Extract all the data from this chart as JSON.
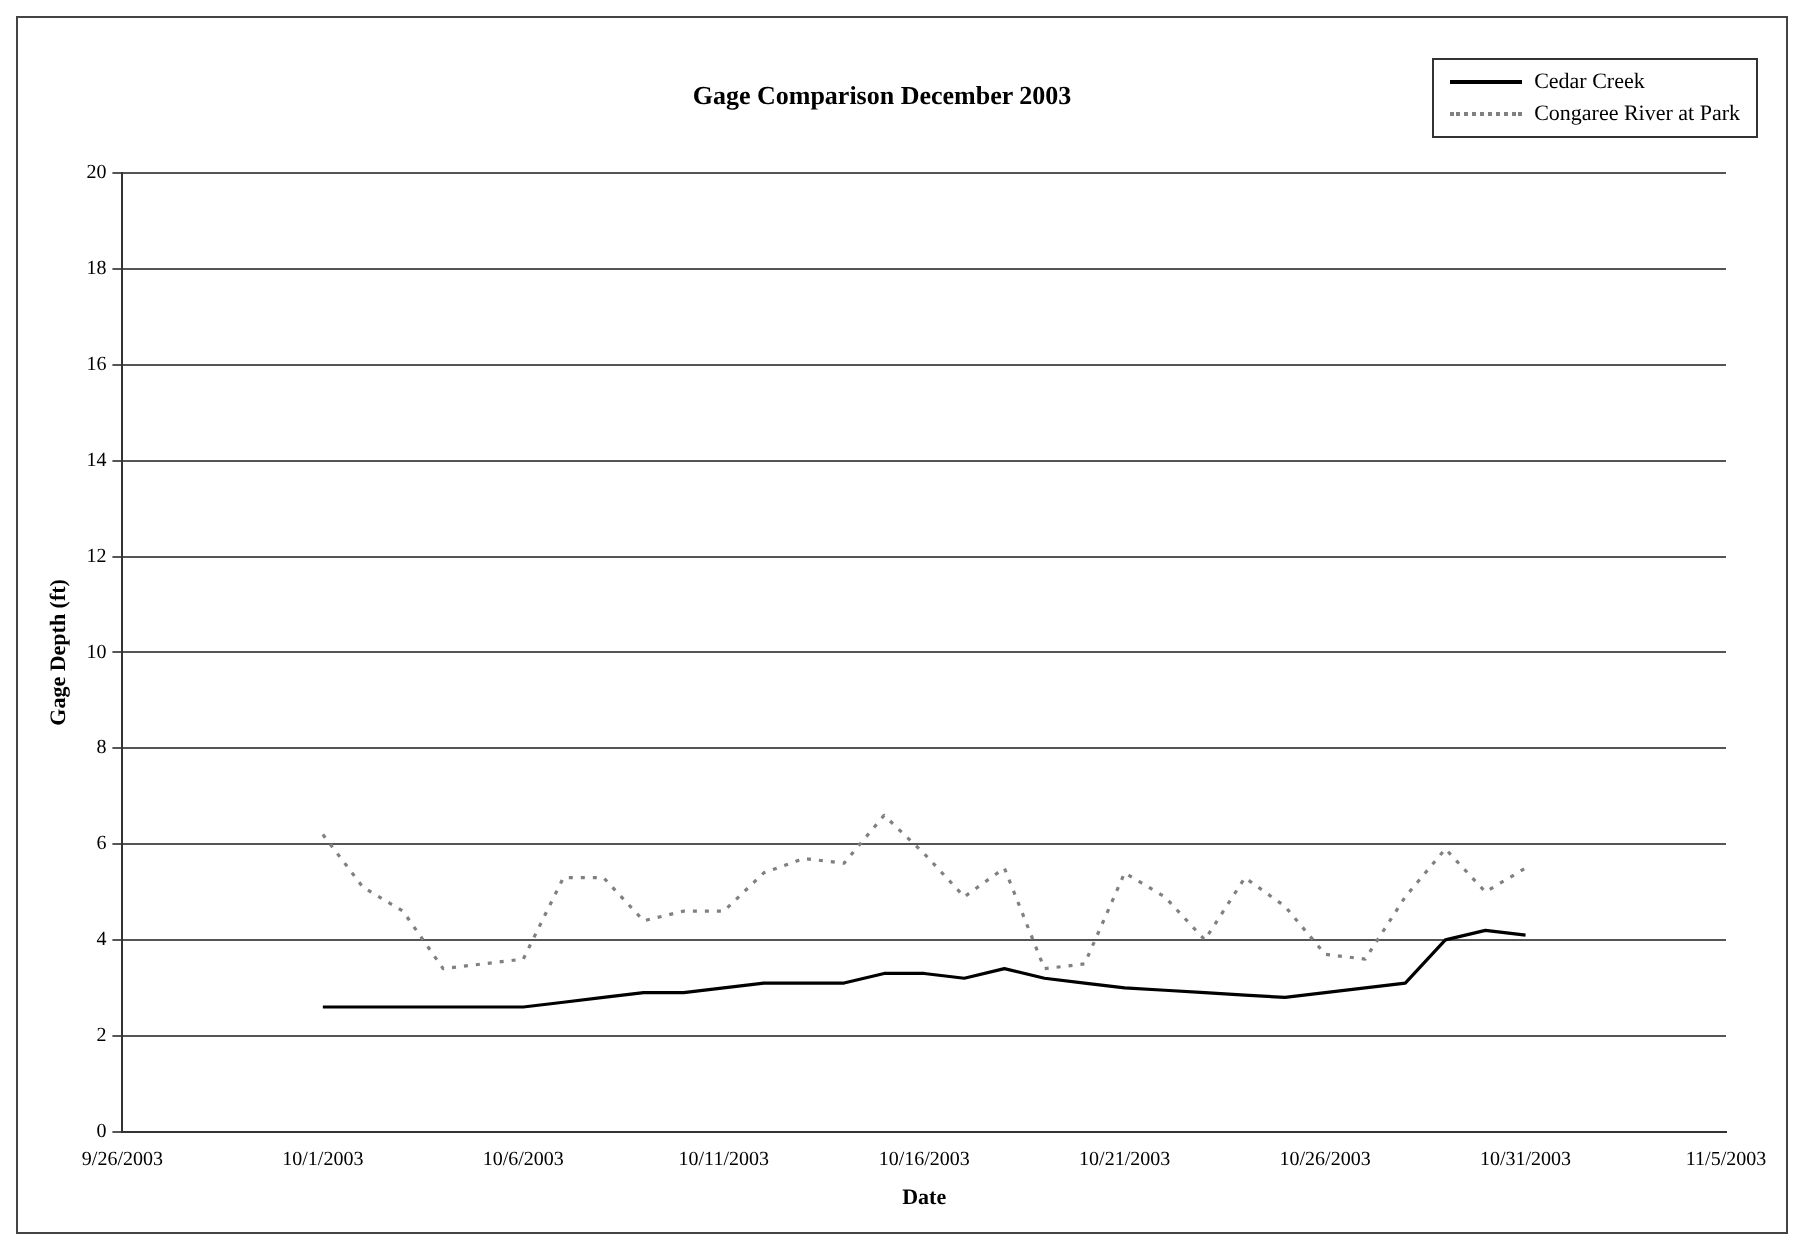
{
  "chart_data": {
    "type": "line",
    "title": "Gage Comparison December 2003",
    "xlabel": "Date",
    "ylabel": "Gage Depth (ft)",
    "x": [
      "2003-10-01",
      "2003-10-02",
      "2003-10-03",
      "2003-10-04",
      "2003-10-05",
      "2003-10-06",
      "2003-10-07",
      "2003-10-08",
      "2003-10-09",
      "2003-10-10",
      "2003-10-11",
      "2003-10-12",
      "2003-10-13",
      "2003-10-14",
      "2003-10-15",
      "2003-10-16",
      "2003-10-17",
      "2003-10-18",
      "2003-10-19",
      "2003-10-20",
      "2003-10-21",
      "2003-10-22",
      "2003-10-23",
      "2003-10-24",
      "2003-10-25",
      "2003-10-26",
      "2003-10-27",
      "2003-10-28",
      "2003-10-29",
      "2003-10-30",
      "2003-10-31"
    ],
    "series": [
      {
        "name": "Cedar Creek",
        "color": "#000000",
        "line_style": "solid",
        "values": [
          2.6,
          2.6,
          2.6,
          2.6,
          2.6,
          2.6,
          2.7,
          2.8,
          2.9,
          2.9,
          3.0,
          3.1,
          3.1,
          3.1,
          3.3,
          3.3,
          3.2,
          3.4,
          3.2,
          3.1,
          3.0,
          2.95,
          2.9,
          2.85,
          2.8,
          2.9,
          3.0,
          3.1,
          4.0,
          4.2,
          4.1
        ]
      },
      {
        "name": "Congaree River at Park",
        "color": "#808080",
        "line_style": "dotted",
        "values": [
          6.2,
          5.1,
          4.6,
          3.4,
          3.5,
          3.6,
          5.3,
          5.3,
          4.4,
          4.6,
          4.6,
          5.4,
          5.7,
          5.6,
          6.6,
          5.8,
          4.9,
          5.5,
          3.4,
          3.5,
          5.4,
          4.9,
          4.0,
          5.3,
          4.7,
          3.7,
          3.6,
          4.9,
          5.9,
          5.0,
          5.5
        ]
      }
    ],
    "xlim": [
      "2003-09-26",
      "2003-11-05"
    ],
    "xticks": [
      {
        "value": "2003-09-26",
        "label": "9/26/2003"
      },
      {
        "value": "2003-10-01",
        "label": "10/1/2003"
      },
      {
        "value": "2003-10-06",
        "label": "10/6/2003"
      },
      {
        "value": "2003-10-11",
        "label": "10/11/2003"
      },
      {
        "value": "2003-10-16",
        "label": "10/16/2003"
      },
      {
        "value": "2003-10-21",
        "label": "10/21/2003"
      },
      {
        "value": "2003-10-26",
        "label": "10/26/2003"
      },
      {
        "value": "2003-10-31",
        "label": "10/31/2003"
      },
      {
        "value": "2003-11-05",
        "label": "11/5/2003"
      }
    ],
    "ylim": [
      0,
      20
    ],
    "yticks": [
      0,
      2,
      4,
      6,
      8,
      10,
      12,
      14,
      16,
      18,
      20
    ],
    "grid": "y",
    "legend": "top right",
    "marker": "none"
  }
}
